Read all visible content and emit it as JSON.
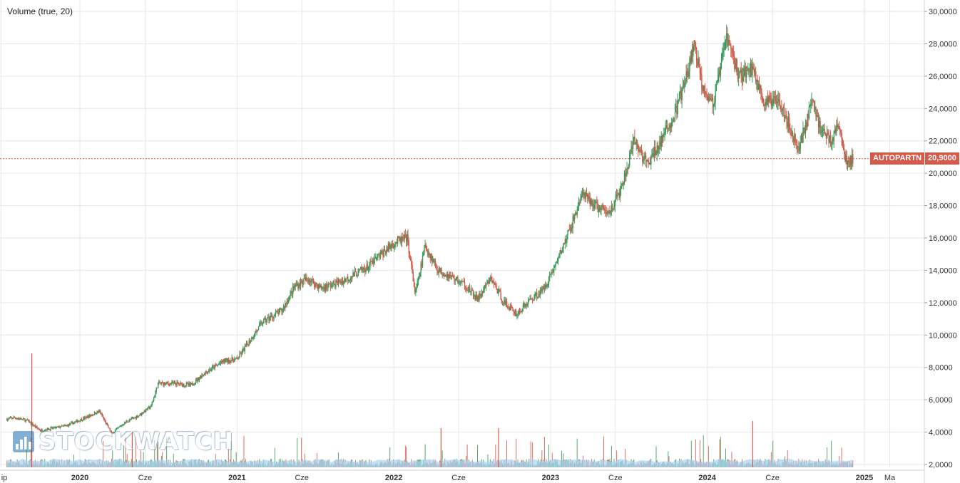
{
  "indicator": {
    "label": "Volume (true, 20)"
  },
  "watermark": {
    "text": "STOCKWATCH"
  },
  "last_price": {
    "symbol": "AUTOPARTN",
    "value": "20,9000",
    "color": "#d45a4a"
  },
  "colors": {
    "up": "#3a9a5b",
    "down": "#d45a4a",
    "grid": "#e6e6e6",
    "volume_ma": "#a9d3f2"
  },
  "chart_data": {
    "type": "candlestick",
    "y_axis": {
      "ticks": [
        "30,0000",
        "28,0000",
        "26,0000",
        "24,0000",
        "22,0000",
        "20,0000",
        "18,0000",
        "16,0000",
        "14,0000",
        "12,0000",
        "10,0000",
        "8,0000",
        "6,0000",
        "4,0000",
        "2,0000"
      ],
      "range": [
        2.0,
        30.0
      ],
      "position": "right"
    },
    "x_axis": {
      "ticks": [
        "ip",
        "2020",
        "Cze",
        "2021",
        "Cze",
        "2022",
        "Cze",
        "2023",
        "Cze",
        "2024",
        "Cze",
        "2025",
        "Ma"
      ]
    },
    "grid": true,
    "price_path": [
      [
        "2019-07-15",
        4.8
      ],
      [
        "2019-08-01",
        4.9
      ],
      [
        "2019-09-01",
        4.7
      ],
      [
        "2019-10-01",
        4.1
      ],
      [
        "2019-12-01",
        4.4
      ],
      [
        "2020-01-15",
        4.9
      ],
      [
        "2020-02-15",
        5.3
      ],
      [
        "2020-03-15",
        3.9
      ],
      [
        "2020-04-15",
        4.6
      ],
      [
        "2020-05-15",
        5.0
      ],
      [
        "2020-06-15",
        5.6
      ],
      [
        "2020-07-01",
        7.0
      ],
      [
        "2020-08-15",
        7.0
      ],
      [
        "2020-09-15",
        6.9
      ],
      [
        "2020-10-15",
        7.6
      ],
      [
        "2020-12-01",
        8.4
      ],
      [
        "2021-01-01",
        8.5
      ],
      [
        "2021-02-01",
        9.7
      ],
      [
        "2021-03-01",
        10.8
      ],
      [
        "2021-04-15",
        11.5
      ],
      [
        "2021-05-15",
        13.0
      ],
      [
        "2021-06-15",
        13.5
      ],
      [
        "2021-07-15",
        12.9
      ],
      [
        "2021-09-01",
        13.3
      ],
      [
        "2021-11-01",
        14.2
      ],
      [
        "2022-01-01",
        15.7
      ],
      [
        "2022-02-01",
        16.0
      ],
      [
        "2022-02-20",
        12.5
      ],
      [
        "2022-03-15",
        15.5
      ],
      [
        "2022-04-15",
        14.0
      ],
      [
        "2022-05-15",
        13.6
      ],
      [
        "2022-06-15",
        13.1
      ],
      [
        "2022-07-15",
        12.2
      ],
      [
        "2022-08-15",
        13.5
      ],
      [
        "2022-09-15",
        12.0
      ],
      [
        "2022-10-15",
        11.3
      ],
      [
        "2022-11-15",
        12.2
      ],
      [
        "2022-12-15",
        12.8
      ],
      [
        "2023-01-15",
        14.5
      ],
      [
        "2023-02-15",
        16.5
      ],
      [
        "2023-03-15",
        18.7
      ],
      [
        "2023-04-15",
        18.0
      ],
      [
        "2023-05-15",
        17.5
      ],
      [
        "2023-06-15",
        19.0
      ],
      [
        "2023-07-15",
        22.0
      ],
      [
        "2023-08-15",
        20.5
      ],
      [
        "2023-09-15",
        22.0
      ],
      [
        "2023-10-15",
        23.5
      ],
      [
        "2023-11-15",
        26.0
      ],
      [
        "2023-12-01",
        28.0
      ],
      [
        "2023-12-20",
        25.5
      ],
      [
        "2024-01-15",
        24.2
      ],
      [
        "2024-02-15",
        28.5
      ],
      [
        "2024-03-15",
        26.0
      ],
      [
        "2024-04-15",
        26.5
      ],
      [
        "2024-05-15",
        24.2
      ],
      [
        "2024-06-15",
        24.8
      ],
      [
        "2024-07-15",
        22.5
      ],
      [
        "2024-08-01",
        21.5
      ],
      [
        "2024-09-01",
        24.5
      ],
      [
        "2024-09-20",
        22.8
      ],
      [
        "2024-10-15",
        22.0
      ],
      [
        "2024-11-01",
        23.0
      ],
      [
        "2024-11-20",
        20.6
      ],
      [
        "2024-12-05",
        20.9
      ]
    ],
    "last_value": 20.9,
    "volume_scale": "small bars along the bottom, with a 20-period volume average"
  }
}
